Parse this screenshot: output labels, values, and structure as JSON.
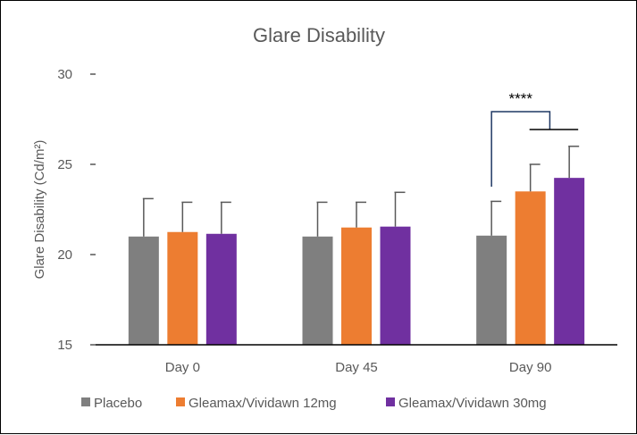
{
  "chart_data": {
    "type": "bar",
    "title": "Glare Disability",
    "xlabel": "",
    "ylabel": "Glare Disability (Cd/m²)",
    "ylim": [
      15,
      30
    ],
    "yticks": [
      15,
      20,
      25,
      30
    ],
    "grid": false,
    "legend_position": "bottom",
    "categories": [
      "Day 0",
      "Day 45",
      "Day 90"
    ],
    "series": [
      {
        "name": "Placebo",
        "color": "#7f7f7f",
        "values": [
          21.0,
          21.0,
          21.05
        ],
        "error": [
          2.1,
          1.9,
          1.9
        ]
      },
      {
        "name": "Gleamax/Vividawn 12mg",
        "color": "#ed7d31",
        "values": [
          21.25,
          21.5,
          23.5
        ],
        "error": [
          1.65,
          1.4,
          1.5
        ]
      },
      {
        "name": "Gleamax/Vividawn 30mg",
        "color": "#7030a0",
        "values": [
          21.15,
          21.55,
          24.25
        ],
        "error": [
          1.75,
          1.9,
          1.75
        ]
      }
    ],
    "annotations": [
      {
        "text": "****",
        "category": "Day 90",
        "compares": [
          "Placebo",
          "Gleamax/Vividawn 12mg",
          "Gleamax/Vividawn 30mg"
        ]
      }
    ]
  }
}
